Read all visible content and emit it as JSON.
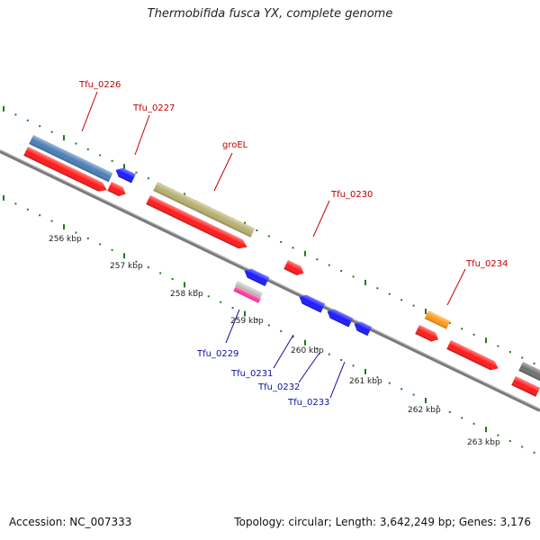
{
  "title": "Thermobifida fusca YX, complete genome",
  "footer": {
    "accession": "Accession: NC_007333",
    "summary": "Topology: circular; Length: 3,642,249 bp; Genes: 3,176"
  },
  "colors": {
    "backbone": "#7a7a7a",
    "tick": "#1f7a1f",
    "label_red": "#c00000",
    "label_blue": "#1010a0",
    "cds_forward": "#ff1a1a",
    "cds_reverse": "#1a1aff",
    "gene_steel": "#4a7fb5",
    "gene_khaki": "#b8b070",
    "gene_orange": "#ff9a1a",
    "gene_pink": "#ff3aa0",
    "gene_silver": "#c8c8c8",
    "gene_gray": "#707070"
  },
  "scale_labels": [
    "256 kbp",
    "257 kbp",
    "258 kbp",
    "259 kbp",
    "260 kbp",
    "261 kbp",
    "262 kbp",
    "263 kbp"
  ],
  "gene_labels": {
    "outer": [
      "Tfu_0226",
      "Tfu_0227",
      "groEL",
      "Tfu_0230",
      "Tfu_0234"
    ],
    "inner": [
      "Tfu_0229",
      "Tfu_0231",
      "Tfu_0232",
      "Tfu_0233"
    ]
  }
}
